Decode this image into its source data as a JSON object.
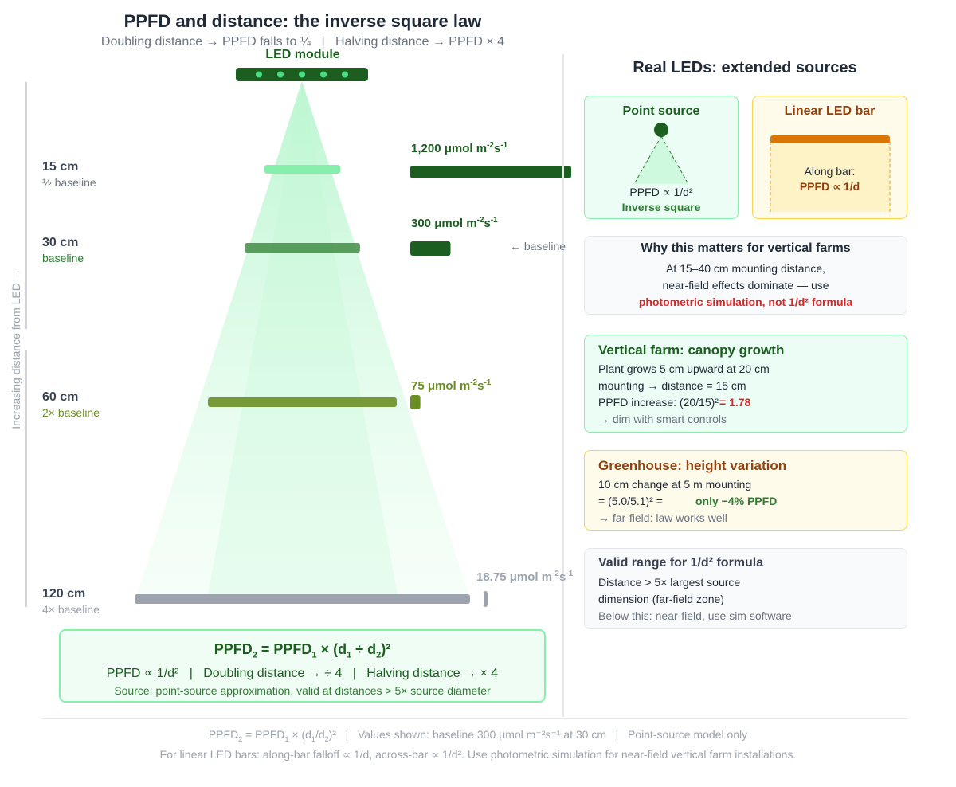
{
  "header": {
    "title": "PPFD and distance: the inverse square law",
    "subtitle": "Doubling distance → PPFD falls to ¼   |   Halving distance → PPFD × 4"
  },
  "led": {
    "label": "LED module"
  },
  "axis": {
    "label": "Increasing distance from LED →"
  },
  "levels": [
    {
      "distance": "15 cm",
      "note": "½ baseline",
      "value": "1,200",
      "ppfd": 1200
    },
    {
      "distance": "30 cm",
      "note": "baseline",
      "value": "300",
      "ppfd": 300
    },
    {
      "distance": "60 cm",
      "note": "2× baseline",
      "value": "75",
      "ppfd": 75
    },
    {
      "distance": "120 cm",
      "note": "4× baseline",
      "value": "18.75",
      "ppfd": 18.75
    }
  ],
  "units": {
    "base": "μmol m",
    "exp1": "-2",
    "mid": "s",
    "exp2": "-1"
  },
  "baseline_marker": "← baseline",
  "formula": {
    "main_a": "PPFD",
    "main_sub1": "2",
    "main_b": " = PPFD",
    "main_sub2": "1",
    "main_c": " × (d",
    "main_sub3": "1",
    "main_d": " ÷ d",
    "main_sub4": "2",
    "main_e": ")²",
    "line2": "PPFD ∝ 1/d²   |   Doubling distance → ÷ 4   |   Halving distance → × 4",
    "line3": "Source: point-source approximation, valid at distances > 5× source diameter"
  },
  "right": {
    "title": "Real LEDs: extended sources",
    "point_source": {
      "title": "Point source",
      "law": "PPFD ∝ 1/d²",
      "caption": "Inverse square"
    },
    "linear_bar": {
      "title": "Linear LED bar",
      "line1": "Along bar:",
      "line2": "PPFD ∝ 1/d"
    },
    "why": {
      "title": "Why this matters for vertical farms",
      "line1": "At 15–40 cm mounting distance,",
      "line2": "near-field effects dominate — use",
      "line3": "photometric simulation, not 1/d² formula"
    },
    "vertical": {
      "title": "Vertical farm: canopy growth",
      "line1": "Plant grows 5 cm upward at 20 cm",
      "line2": "mounting → distance = 15 cm",
      "line3a": "PPFD increase: (20/15)²",
      "line3b": "= 1.78",
      "line4": "→ dim with smart controls"
    },
    "greenhouse": {
      "title": "Greenhouse: height variation",
      "line1": "10 cm change at 5 m mounting",
      "line2a": "= (5.0/5.1)² =",
      "line2b": "only −4% PPFD",
      "line3": "→ far-field: law works well"
    },
    "valid": {
      "title": "Valid range for 1/d² formula",
      "line1": "Distance > 5× largest source",
      "line2": "dimension (far-field zone)",
      "line3": "Below this: near-field, use sim software"
    }
  },
  "footer": {
    "line1a": "PPFD",
    "line1s1": "2",
    "line1b": " = PPFD",
    "line1s2": "1",
    "line1c": " × (d",
    "line1s3": "1",
    "line1d": "/d",
    "line1s4": "2",
    "line1e": ")²   |   Values shown: baseline 300 μmol m⁻²s⁻¹ at 30 cm   |   Point-source model only",
    "line2": "For linear LED bars: along-bar falloff ∝ 1/d, across-bar ∝ 1/d². Use photometric simulation for near-field vertical farm installations."
  },
  "colors": {
    "dark_green": "#1b5e20",
    "mid_green": "#2e7d32",
    "olive": "#6b8e23",
    "gray": "#9ca3af",
    "orange": "#d97706",
    "brown": "#92400e",
    "red": "#dc2626"
  }
}
